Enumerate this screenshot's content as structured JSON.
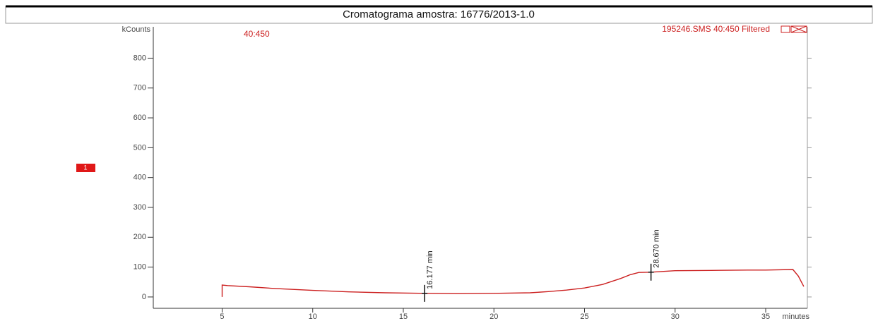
{
  "chart_data": {
    "type": "line",
    "title": "Cromatograma amostra: 16776/2013-1.0",
    "ylabel": "kCounts",
    "xlabel": "minutes",
    "trace_label": "40:450",
    "file_label": "195246.SMS 40:450 Filtered",
    "segment_marker": "1",
    "x": [
      5.0,
      5.0,
      5.3,
      6.5,
      8,
      10,
      12,
      14,
      16.177,
      18,
      20,
      22,
      23,
      24,
      25,
      26,
      27,
      27.5,
      28,
      28.67,
      30,
      32,
      34,
      35,
      36.5,
      36.8,
      37.1
    ],
    "series": [
      {
        "name": "40:450",
        "color": "#cc2020",
        "values": [
          0,
          40,
          38,
          34,
          28,
          22,
          17,
          14,
          12,
          11,
          12,
          14,
          18,
          23,
          30,
          42,
          62,
          74,
          82,
          83,
          88,
          89,
          90,
          90,
          92,
          70,
          35
        ]
      }
    ],
    "peaks": [
      {
        "label": "16.177 min",
        "x": 16.177,
        "y": 12
      },
      {
        "label": "28.670 min",
        "x": 28.67,
        "y": 83
      }
    ],
    "xlim": [
      1.2,
      37.3
    ],
    "xticks": [
      5,
      10,
      15,
      20,
      25,
      30,
      35
    ],
    "ylim": [
      -38,
      905
    ],
    "yticks": [
      0,
      100,
      200,
      300,
      400,
      500,
      600,
      700,
      800
    ]
  }
}
